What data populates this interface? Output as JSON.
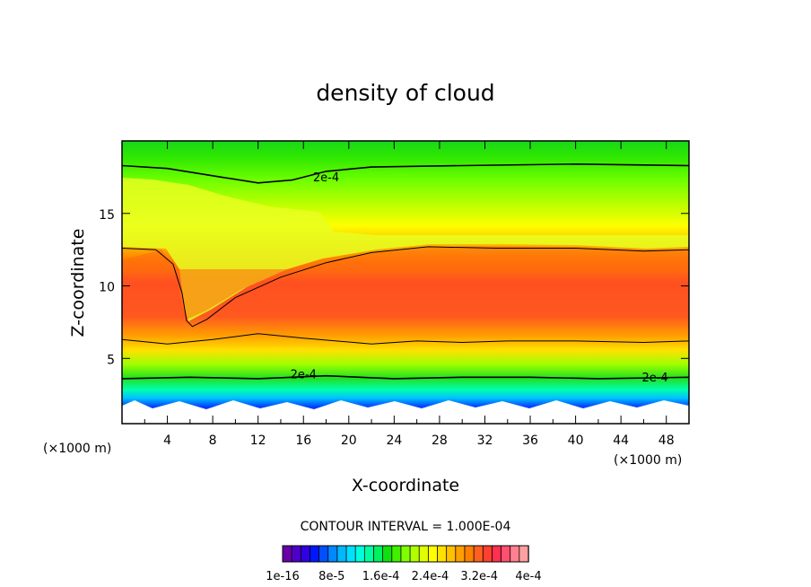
{
  "chart_data": {
    "type": "heatmap",
    "title": "density of cloud",
    "xlabel": "X-coordinate",
    "ylabel": "Z-coordinate",
    "x_unit": "(×1000 m)",
    "xlim": [
      0,
      50
    ],
    "ylim": [
      0.5,
      20
    ],
    "x_ticks": [
      4,
      8,
      12,
      16,
      20,
      24,
      28,
      32,
      36,
      40,
      44,
      48
    ],
    "y_ticks": [
      5,
      10,
      15
    ],
    "contour_interval_text": "CONTOUR INTERVAL = 1.000E-04",
    "colorbar_labels": [
      "1e-16",
      "8e-5",
      "1.6e-4",
      "2.4e-4",
      "3.2e-4",
      "4e-4"
    ],
    "colorbar_range": [
      0,
      0.0004
    ],
    "colorbar_colors": [
      "#6a00a8",
      "#4f00c8",
      "#3000e0",
      "#0018ff",
      "#0050ff",
      "#0088ff",
      "#00b8ff",
      "#00e0ff",
      "#00ffe0",
      "#00ffa0",
      "#00f060",
      "#10e010",
      "#40f000",
      "#80ff00",
      "#b0ff00",
      "#e0ff00",
      "#ffff00",
      "#ffe000",
      "#ffc000",
      "#ffa000",
      "#ff8000",
      "#ff6020",
      "#ff4030",
      "#ff3050",
      "#ff5070",
      "#ff8090",
      "#ffa0a0"
    ],
    "contour_labels": [
      {
        "text": "2e-4",
        "x": 18,
        "z": 17.4
      },
      {
        "text": "2e-4",
        "x": 16,
        "z": 3.8
      },
      {
        "text": "2e-4",
        "x": 47,
        "z": 3.6
      }
    ],
    "contour_lines": [
      {
        "level": "2e-4",
        "points": [
          [
            0,
            18.3
          ],
          [
            4,
            18.1
          ],
          [
            8,
            17.6
          ],
          [
            12,
            17.1
          ],
          [
            15,
            17.3
          ],
          [
            18,
            17.9
          ],
          [
            22,
            18.2
          ],
          [
            30,
            18.3
          ],
          [
            40,
            18.4
          ],
          [
            50,
            18.3
          ]
        ]
      },
      {
        "level": "3e-4",
        "points": [
          [
            0,
            12.6
          ],
          [
            3,
            12.5
          ],
          [
            4.5,
            11.5
          ],
          [
            5.3,
            9.5
          ],
          [
            5.7,
            7.6
          ],
          [
            6.2,
            7.2
          ],
          [
            7.5,
            7.7
          ],
          [
            10,
            9.2
          ],
          [
            14,
            10.6
          ],
          [
            18,
            11.6
          ],
          [
            22,
            12.3
          ],
          [
            27,
            12.7
          ],
          [
            33,
            12.6
          ],
          [
            40,
            12.6
          ],
          [
            46,
            12.4
          ],
          [
            50,
            12.5
          ]
        ]
      },
      {
        "level": "3e-4",
        "points": [
          [
            0,
            6.3
          ],
          [
            4,
            6.0
          ],
          [
            8,
            6.3
          ],
          [
            12,
            6.7
          ],
          [
            16,
            6.4
          ],
          [
            22,
            6.0
          ],
          [
            26,
            6.2
          ],
          [
            30,
            6.1
          ],
          [
            34,
            6.2
          ],
          [
            40,
            6.2
          ],
          [
            46,
            6.1
          ],
          [
            50,
            6.2
          ]
        ]
      },
      {
        "level": "2e-4",
        "points": [
          [
            0,
            3.6
          ],
          [
            6,
            3.7
          ],
          [
            12,
            3.6
          ],
          [
            18,
            3.8
          ],
          [
            24,
            3.6
          ],
          [
            30,
            3.7
          ],
          [
            36,
            3.7
          ],
          [
            42,
            3.6
          ],
          [
            50,
            3.7
          ]
        ]
      }
    ]
  }
}
